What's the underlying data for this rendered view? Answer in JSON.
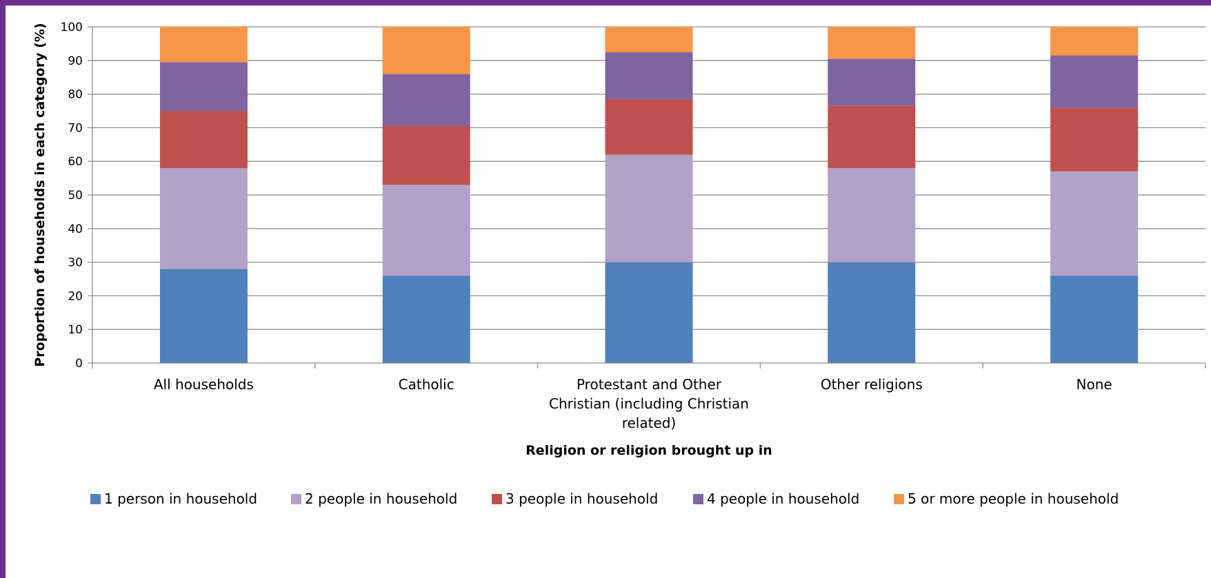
{
  "chart_data": {
    "type": "bar",
    "stacked": true,
    "categories": [
      [
        "All households"
      ],
      [
        "Catholic"
      ],
      [
        "Protestant and Other",
        "Christian (including Christian",
        "related)"
      ],
      [
        "Other religions"
      ],
      [
        "None"
      ]
    ],
    "series": [
      {
        "name": "1 person in household",
        "color": "#4f81bd",
        "values": [
          28,
          26,
          30,
          30,
          26
        ]
      },
      {
        "name": "2 people in household",
        "color": "#b2a2c7",
        "values": [
          30,
          27,
          32,
          28,
          31
        ]
      },
      {
        "name": "3 people in household",
        "color": "#c0504d",
        "values": [
          17,
          17.5,
          16.5,
          18.5,
          19
        ]
      },
      {
        "name": "4 people in household",
        "color": "#8064a2",
        "values": [
          14.5,
          15.5,
          14,
          14,
          15.5
        ]
      },
      {
        "name": "5 or more people in household",
        "color": "#f79646",
        "values": [
          10.5,
          14,
          7.5,
          9.5,
          8.5
        ]
      }
    ],
    "xlabel": "Religion or religion brought up in",
    "ylabel": "Proportion of households in each category (%)",
    "ylim": [
      0,
      100
    ],
    "yticks": [
      0,
      10,
      20,
      30,
      40,
      50,
      60,
      70,
      80,
      90,
      100
    ],
    "grid": true,
    "legend_position": "bottom"
  }
}
